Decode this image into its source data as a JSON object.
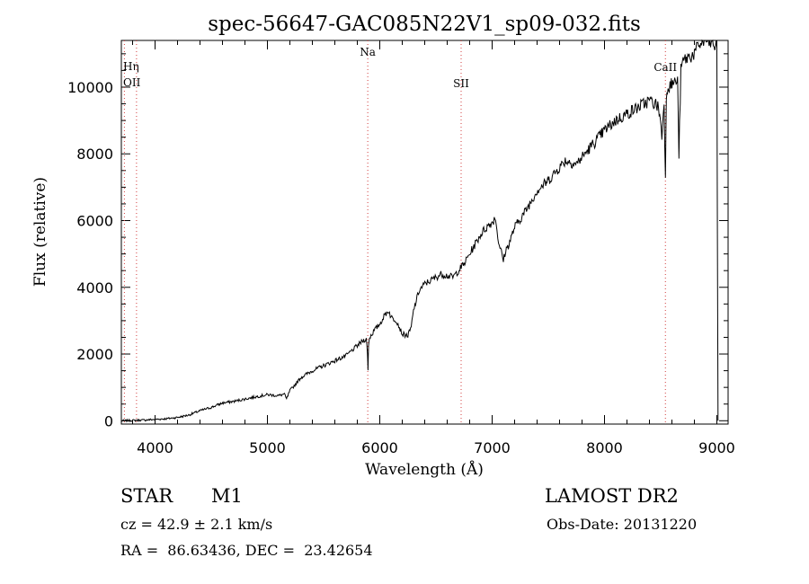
{
  "chart_data": {
    "type": "line",
    "title": "spec-56647-GAC085N22V1_sp09-032.fits",
    "xlabel": "Wavelength (Å)",
    "ylabel": "Flux (relative)",
    "xlim": [
      3700,
      9100
    ],
    "ylim": [
      -100,
      11400
    ],
    "xticks": [
      4000,
      5000,
      6000,
      7000,
      8000,
      9000
    ],
    "yticks": [
      0,
      2000,
      4000,
      6000,
      8000,
      10000
    ],
    "grid": false,
    "series": [
      {
        "x": [
          3700,
          3800,
          3900,
          4000,
          4100,
          4200,
          4300,
          4400,
          4500,
          4600,
          4700,
          4800,
          4900,
          5000,
          5100,
          5150,
          5170,
          5200,
          5250,
          5300,
          5400,
          5500,
          5600,
          5700,
          5750,
          5800,
          5850,
          5880,
          5890,
          5895,
          5900,
          5910,
          5950,
          6000,
          6050,
          6080,
          6100,
          6150,
          6200,
          6250,
          6280,
          6300,
          6350,
          6400,
          6450,
          6500,
          6550,
          6600,
          6650,
          6700,
          6750,
          6800,
          6850,
          6900,
          6950,
          7000,
          7030,
          7050,
          7070,
          7100,
          7120,
          7150,
          7200,
          7300,
          7400,
          7500,
          7600,
          7650,
          7700,
          7750,
          7800,
          7900,
          8000,
          8100,
          8200,
          8300,
          8400,
          8450,
          8480,
          8498,
          8510,
          8530,
          8542,
          8550,
          8560,
          8600,
          8650,
          8662,
          8680,
          8700,
          8800,
          8850,
          8900,
          8950,
          9000,
          9010
        ],
        "y": [
          0,
          10,
          20,
          40,
          60,
          100,
          170,
          300,
          400,
          530,
          580,
          650,
          720,
          780,
          750,
          800,
          650,
          900,
          1100,
          1300,
          1500,
          1650,
          1800,
          1950,
          2100,
          2250,
          2400,
          2450,
          2050,
          1500,
          2300,
          2500,
          2700,
          2900,
          3200,
          3300,
          3100,
          3000,
          2600,
          2550,
          2800,
          3300,
          3900,
          4100,
          4200,
          4300,
          4400,
          4350,
          4300,
          4500,
          4700,
          5000,
          5300,
          5600,
          5800,
          5950,
          6100,
          5500,
          5200,
          4800,
          5100,
          5300,
          5800,
          6300,
          6900,
          7200,
          7600,
          7800,
          7750,
          7700,
          7900,
          8300,
          8700,
          9000,
          9200,
          9400,
          9600,
          9500,
          9400,
          9000,
          8500,
          9600,
          7200,
          9800,
          10000,
          10100,
          10200,
          8000,
          10500,
          10800,
          11000,
          11300,
          11400,
          11300,
          11200,
          0
        ]
      }
    ],
    "annotations": [
      {
        "label": "Hη",
        "x": 3835
      },
      {
        "label": "OII",
        "x": 3727
      },
      {
        "label": "Na",
        "x": 5893
      },
      {
        "label": "SII",
        "x": 6724
      },
      {
        "label": "CaII",
        "x": 8542
      }
    ]
  },
  "info": {
    "object_type": "STAR",
    "object_class": "M1",
    "cz": "cz = 42.9 ± 2.1 km/s",
    "coords": "RA =  86.63436, DEC =  23.42654",
    "survey": "LAMOST DR2",
    "obs_date": "Obs-Date: 20131220"
  }
}
